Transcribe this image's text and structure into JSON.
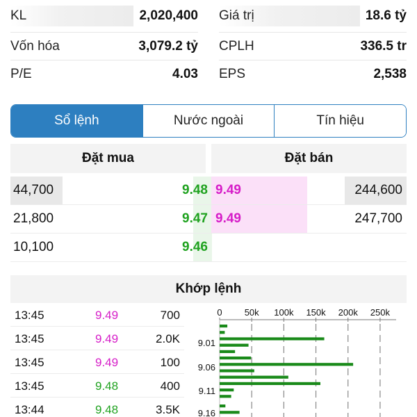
{
  "stats": {
    "left": [
      {
        "label": "KL",
        "value": "2,020,400"
      },
      {
        "label": "Vốn hóa",
        "value": "3,079.2 tỷ"
      },
      {
        "label": "P/E",
        "value": "4.03"
      }
    ],
    "right": [
      {
        "label": "Giá trị",
        "value": "18.6 tỷ"
      },
      {
        "label": "CPLH",
        "value": "336.5 tr"
      },
      {
        "label": "EPS",
        "value": "2,538"
      }
    ]
  },
  "tabs": [
    {
      "label": "Sổ lệnh",
      "active": true
    },
    {
      "label": "Nước ngoài",
      "active": false
    },
    {
      "label": "Tín hiệu",
      "active": false
    }
  ],
  "order_book": {
    "buy_header": "Đặt mua",
    "sell_header": "Đặt bán",
    "rows": [
      {
        "buy_volume": "44,700",
        "buy_price": "9.48",
        "sell_price": "9.49",
        "sell_volume": "244,600"
      },
      {
        "buy_volume": "21,800",
        "buy_price": "9.47",
        "sell_price": "9.49",
        "sell_volume": "247,700"
      },
      {
        "buy_volume": "10,100",
        "buy_price": "9.46",
        "sell_price": "",
        "sell_volume": ""
      }
    ]
  },
  "matched": {
    "header": "Khớp lệnh",
    "trades": [
      {
        "time": "13:45",
        "price": "9.49",
        "volume": "700",
        "dir": "up"
      },
      {
        "time": "13:45",
        "price": "9.49",
        "volume": "2.0K",
        "dir": "up"
      },
      {
        "time": "13:45",
        "price": "9.49",
        "volume": "100",
        "dir": "up"
      },
      {
        "time": "13:45",
        "price": "9.48",
        "volume": "400",
        "dir": "eq"
      },
      {
        "time": "13:44",
        "price": "9.48",
        "volume": "3.5K",
        "dir": "eq"
      }
    ]
  },
  "chart_data": {
    "type": "bar",
    "orientation": "horizontal",
    "x_ticks": [
      "0",
      "50k",
      "100k",
      "150k",
      "200k",
      "250k"
    ],
    "y_tick_labels": [
      "9.01",
      "9.06",
      "9.11",
      "9.16"
    ],
    "x_max": 275000,
    "bar_color": "#1a8a1a",
    "values": [
      12000,
      0,
      8000,
      0,
      163000,
      0,
      45000,
      0,
      24000,
      0,
      49000,
      0,
      208000,
      0,
      54000,
      0,
      107000,
      0,
      157000,
      0,
      22000,
      0,
      18000,
      0,
      0,
      9000,
      0,
      31000,
      0
    ]
  }
}
